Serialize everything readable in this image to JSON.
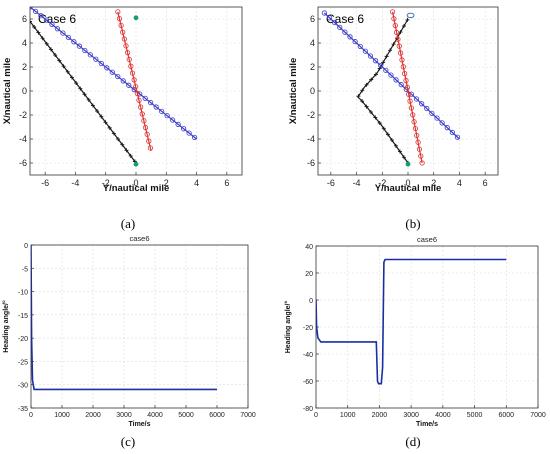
{
  "captions": [
    "(a)",
    "(b)",
    "(c)",
    "(d)"
  ],
  "chart_data": [
    {
      "panel": "a",
      "type": "line",
      "title": "Case 6",
      "xlabel": "Y/nautical mile",
      "ylabel": "X/nautical mile",
      "xlim": [
        -7,
        7
      ],
      "ylim": [
        -7,
        7
      ],
      "xticks": [
        -6,
        -4,
        -2,
        0,
        2,
        4,
        6
      ],
      "yticks": [
        -6,
        -4,
        -2,
        0,
        2,
        4,
        6
      ],
      "grid": true,
      "series": [
        {
          "color": "#1a1a1a",
          "marker": "plus",
          "points": [
            [
              -7,
              5.8
            ],
            [
              0,
              -6
            ]
          ]
        },
        {
          "color": "#3a3ac8",
          "marker": "circle",
          "points": [
            [
              -7,
              7
            ],
            [
              4,
              -4
            ]
          ]
        },
        {
          "color": "#e03030",
          "marker": "circle",
          "points": [
            [
              -1.2,
              6.6
            ],
            [
              1,
              -5
            ]
          ]
        }
      ],
      "points": [
        {
          "color": "#1a9a7a",
          "x": 0,
          "y": 6.1
        },
        {
          "color": "#1a9a7a",
          "x": 0,
          "y": -6.1
        }
      ]
    },
    {
      "panel": "b",
      "type": "line",
      "title": "Case 6",
      "xlabel": "Y/nautical mile",
      "ylabel": "X/nautical mile",
      "xlim": [
        -7,
        7
      ],
      "ylim": [
        -7,
        7
      ],
      "xticks": [
        -6,
        -4,
        -2,
        0,
        2,
        4,
        6
      ],
      "yticks": [
        -6,
        -4,
        -2,
        0,
        2,
        4,
        6
      ],
      "grid": true,
      "series": [
        {
          "color": "#1a1a1a",
          "marker": "plus",
          "points": [
            [
              0,
              -6
            ],
            [
              -2.1,
              -2.8
            ],
            [
              -3.6,
              -0.8
            ],
            [
              -3.9,
              -0.5
            ],
            [
              -3.4,
              0.3
            ],
            [
              -2.4,
              1.5
            ],
            [
              0,
              6
            ]
          ]
        },
        {
          "color": "#3a3ac8",
          "marker": "circle",
          "points": [
            [
              -6.5,
              6.5
            ],
            [
              4,
              -4
            ]
          ]
        },
        {
          "color": "#e03030",
          "marker": "circle",
          "points": [
            [
              -1.2,
              6.6
            ],
            [
              1.1,
              -6
            ]
          ]
        }
      ],
      "points": [
        {
          "color": "#1a9a7a",
          "x": 0,
          "y": -6.1
        }
      ],
      "rings": [
        {
          "color": "#2a6aaa",
          "x": 0.2,
          "y": 6.3
        }
      ]
    },
    {
      "panel": "c",
      "type": "line",
      "title": "case6",
      "xlabel": "Time/s",
      "ylabel": "Heading angle/°",
      "xlim": [
        0,
        7000
      ],
      "ylim": [
        -35,
        0
      ],
      "xticks": [
        0,
        1000,
        2000,
        3000,
        4000,
        5000,
        6000,
        7000
      ],
      "yticks": [
        -35,
        -30,
        -25,
        -20,
        -15,
        -10,
        -5,
        0
      ],
      "grid": true,
      "series": [
        {
          "color": "#1a2ea0",
          "points": [
            [
              0,
              0
            ],
            [
              20,
              -20
            ],
            [
              50,
              -29
            ],
            [
              100,
              -31
            ],
            [
              200,
              -31
            ],
            [
              6000,
              -31
            ]
          ]
        }
      ]
    },
    {
      "panel": "d",
      "type": "line",
      "title": "case6",
      "xlabel": "Time/s",
      "ylabel": "Heading angle/°",
      "xlim": [
        0,
        7000
      ],
      "ylim": [
        -80,
        40
      ],
      "xticks": [
        0,
        1000,
        2000,
        3000,
        4000,
        5000,
        6000,
        7000
      ],
      "yticks": [
        -80,
        -60,
        -40,
        -20,
        0,
        20,
        40
      ],
      "grid": true,
      "series": [
        {
          "color": "#1a2ea0",
          "points": [
            [
              0,
              0
            ],
            [
              20,
              -20
            ],
            [
              60,
              -28
            ],
            [
              150,
              -31
            ],
            [
              1900,
              -31
            ],
            [
              1940,
              -60
            ],
            [
              1970,
              -62
            ],
            [
              2060,
              -62
            ],
            [
              2100,
              -50
            ],
            [
              2140,
              28
            ],
            [
              2180,
              30
            ],
            [
              6000,
              30
            ]
          ]
        }
      ]
    }
  ]
}
